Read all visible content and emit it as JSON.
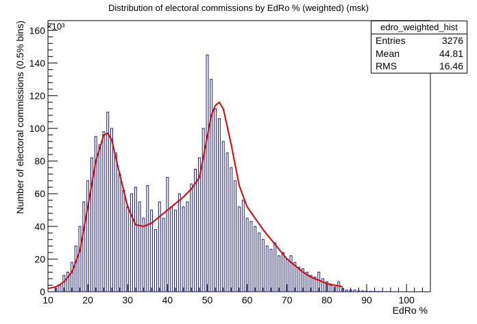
{
  "title": "Distribution of electoral commissions by EdRo % (weighted) (msk)",
  "stats": {
    "name": "edro_weighted_hist",
    "rows": [
      {
        "label": "Entries",
        "value": "3276"
      },
      {
        "label": "Mean",
        "value": "44.81"
      },
      {
        "label": "RMS",
        "value": "16.46"
      }
    ]
  },
  "colors": {
    "histogram": "#1a1a80",
    "fit": "#e00000",
    "frame": "#000000"
  },
  "chart_data": {
    "type": "line",
    "title": "Distribution of electoral commissions by EdRo % (weighted) (msk)",
    "xlabel": "EdRo %",
    "ylabel": "Number of electoral commissions (0.5% bins)",
    "y_multiplier_label": "×10³",
    "xlim": [
      10,
      106
    ],
    "ylim": [
      0,
      166
    ],
    "x_ticks": [
      10,
      20,
      30,
      40,
      50,
      60,
      70,
      80,
      90,
      100
    ],
    "y_ticks": [
      0,
      20,
      40,
      60,
      80,
      100,
      120,
      140,
      160
    ],
    "grid": false,
    "histogram": {
      "name": "edro_weighted_hist",
      "bin_width": 0.5,
      "x": [
        12,
        13,
        14,
        15,
        16,
        17,
        18,
        19,
        20,
        21,
        22,
        23,
        24,
        25,
        26,
        27,
        28,
        29,
        30,
        31,
        32,
        33,
        34,
        35,
        36,
        37,
        38,
        39,
        40,
        41,
        42,
        43,
        44,
        45,
        46,
        47,
        48,
        49,
        50,
        51,
        52,
        53,
        54,
        55,
        56,
        57,
        58,
        59,
        60,
        61,
        62,
        63,
        64,
        65,
        66,
        67,
        68,
        69,
        70,
        71,
        72,
        73,
        74,
        75,
        76,
        77,
        78,
        79,
        80,
        81,
        82,
        83,
        84,
        85,
        86,
        87,
        88,
        89,
        90,
        91,
        92,
        93,
        94,
        95,
        96
      ],
      "y": [
        2,
        4,
        10,
        12,
        18,
        28,
        40,
        55,
        68,
        82,
        95,
        90,
        98,
        110,
        100,
        85,
        72,
        62,
        52,
        60,
        64,
        55,
        45,
        65,
        50,
        38,
        55,
        45,
        70,
        52,
        50,
        60,
        52,
        55,
        66,
        75,
        82,
        100,
        145,
        130,
        112,
        106,
        92,
        85,
        76,
        68,
        52,
        56,
        45,
        43,
        40,
        36,
        32,
        28,
        26,
        30,
        22,
        24,
        20,
        22,
        18,
        15,
        14,
        12,
        10,
        9,
        12,
        8,
        6,
        4,
        3,
        6,
        2,
        1,
        1,
        1,
        0.5,
        0.5,
        0.3,
        0.3,
        0.2,
        0.2,
        0.1,
        0.1,
        0.1
      ]
    },
    "fit": {
      "name": "fit",
      "x": [
        10,
        12,
        14,
        16,
        18,
        20,
        22,
        24,
        25,
        26,
        28,
        30,
        32,
        34,
        36,
        38,
        40,
        42,
        44,
        46,
        48,
        50,
        51,
        52,
        53,
        54,
        56,
        58,
        60,
        62,
        64,
        66,
        68,
        70,
        72,
        74,
        76,
        78,
        80,
        82,
        84
      ],
      "y": [
        2,
        3,
        6,
        12,
        25,
        52,
        80,
        96,
        97,
        93,
        72,
        52,
        41,
        40,
        42,
        46,
        50,
        54,
        58,
        63,
        70,
        95,
        108,
        114,
        116,
        112,
        90,
        65,
        52,
        45,
        38,
        32,
        26,
        20,
        16,
        12,
        9,
        7,
        5,
        4,
        3
      ]
    }
  }
}
